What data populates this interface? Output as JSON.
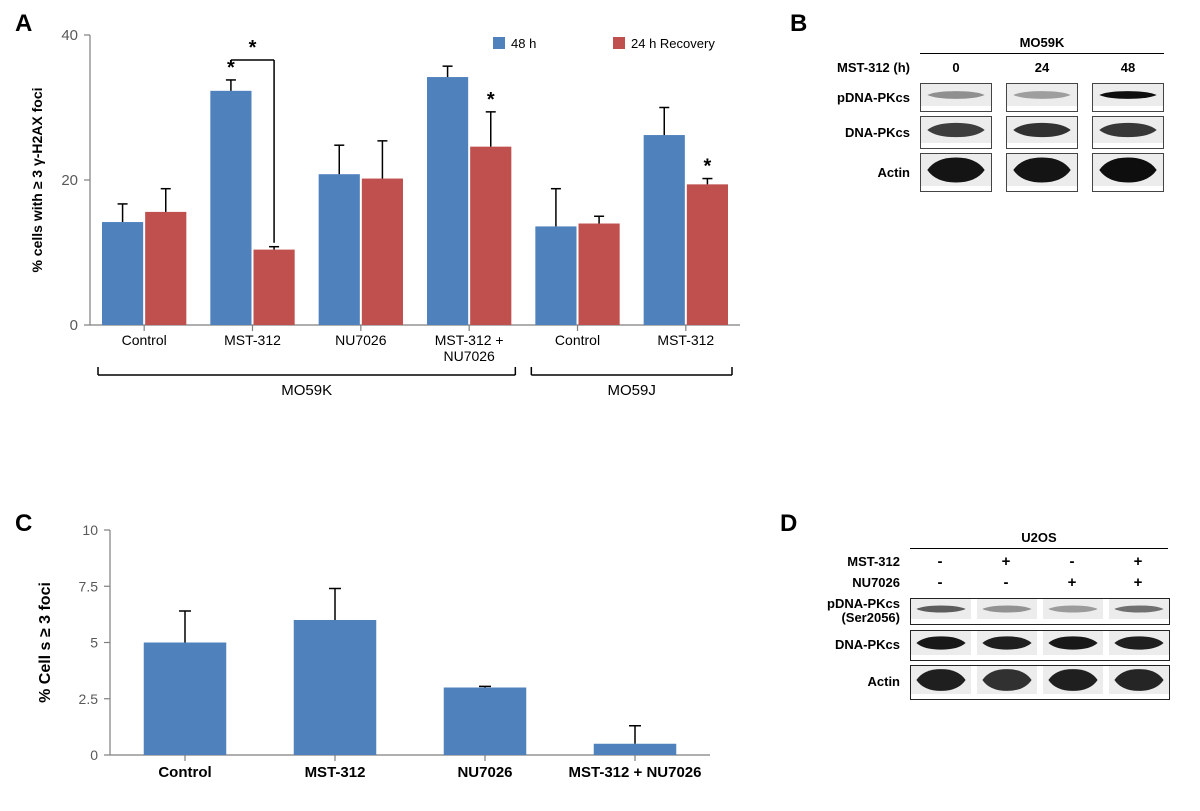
{
  "panelA": {
    "label": "A",
    "type": "bar",
    "y_axis_label": "% cells with ≥ 3 γ-H2AX foci",
    "y_axis_label_fontsize": 14,
    "ylim": [
      0,
      40
    ],
    "ytick_step": 20,
    "yticks": [
      0,
      20,
      40
    ],
    "legend": {
      "items": [
        {
          "label": "48 h",
          "color": "#4f81bd"
        },
        {
          "label": "24 h Recovery",
          "color": "#c0504d"
        }
      ],
      "fontsize": 13
    },
    "bar_width": 0.38,
    "colors": {
      "blue": "#4f81bd",
      "red": "#c0504d"
    },
    "border_color": "#000000",
    "error_bar_color": "#000000",
    "groups": [
      {
        "label": "Control",
        "section": "MO59K",
        "blue": 14.2,
        "blue_err": 2.5,
        "red": 15.6,
        "red_err": 3.2
      },
      {
        "label": "MST-312",
        "section": "MO59K",
        "blue": 32.3,
        "blue_err": 1.5,
        "red": 10.4,
        "red_err": 0.4,
        "sig_blue": "*",
        "sig_bracket": "*"
      },
      {
        "label": "NU7026",
        "section": "MO59K",
        "blue": 20.8,
        "blue_err": 4.0,
        "red": 20.2,
        "red_err": 5.2
      },
      {
        "label": "MST-312 +\nNU7026",
        "section": "MO59K",
        "blue": 34.2,
        "blue_err": 1.5,
        "red": 24.6,
        "red_err": 4.8,
        "sig_red": "*"
      },
      {
        "label": "Control",
        "section": "MO59J",
        "blue": 13.6,
        "blue_err": 5.2,
        "red": 14.0,
        "red_err": 1.0
      },
      {
        "label": "MST-312",
        "section": "MO59J",
        "blue": 26.2,
        "blue_err": 3.8,
        "red": 19.4,
        "red_err": 0.8,
        "sig_red": "*"
      }
    ],
    "sections": [
      {
        "label": "MO59K",
        "start": 0,
        "end": 4
      },
      {
        "label": "MO59J",
        "start": 4,
        "end": 6
      }
    ],
    "x_label_fontsize": 14,
    "section_label_fontsize": 15,
    "tick_fontsize": 15
  },
  "panelB": {
    "label": "B",
    "cell_line": "MO59K",
    "treatment_label": "MST-312 (h)",
    "timepoints": [
      "0",
      "24",
      "48"
    ],
    "rows": [
      {
        "label": "pDNA-PKcs",
        "intensity": [
          0.35,
          0.25,
          0.95
        ],
        "shape": "thin"
      },
      {
        "label": "DNA-PKcs",
        "intensity": [
          0.75,
          0.8,
          0.78
        ],
        "shape": "medium"
      },
      {
        "label": "Actin",
        "intensity": [
          0.92,
          0.92,
          0.95
        ],
        "shape": "thick"
      }
    ],
    "label_fontsize": 13,
    "lane_width": 72,
    "lane_gap": 14
  },
  "panelC": {
    "label": "C",
    "type": "bar",
    "y_axis_label": "% Cell s ≥ 3 foci",
    "y_axis_label_fontsize": 16,
    "ylim": [
      0,
      10
    ],
    "ytick_step": 2.5,
    "yticks": [
      0,
      2.5,
      5,
      7.5,
      10
    ],
    "bar_color": "#4f81bd",
    "border_color": "#000000",
    "error_bar_color": "#000000",
    "bar_width": 0.55,
    "x_label_fontsize": 15,
    "tick_fontsize": 14,
    "bars": [
      {
        "label": "Control",
        "value": 5.0,
        "err": 1.4
      },
      {
        "label": "MST-312",
        "value": 6.0,
        "err": 1.4
      },
      {
        "label": "NU7026",
        "value": 3.0,
        "err": 0.05
      },
      {
        "label": "MST-312 + NU7026",
        "value": 0.5,
        "err": 0.8
      }
    ]
  },
  "panelD": {
    "label": "D",
    "cell_line": "U2OS",
    "treatments": [
      {
        "label": "MST-312",
        "values": [
          "-",
          "+",
          "-",
          "+"
        ]
      },
      {
        "label": "NU7026",
        "values": [
          "-",
          "-",
          "+",
          "+"
        ]
      }
    ],
    "rows": [
      {
        "label": "pDNA-PKcs\n(Ser2056)",
        "intensity": [
          0.6,
          0.32,
          0.28,
          0.5
        ],
        "shape": "thin"
      },
      {
        "label": "DNA-PKcs",
        "intensity": [
          0.9,
          0.88,
          0.9,
          0.88
        ],
        "shape": "medium"
      },
      {
        "label": "Actin",
        "intensity": [
          0.88,
          0.8,
          0.88,
          0.85
        ],
        "shape": "thick"
      }
    ],
    "label_fontsize": 13,
    "lane_width": 60,
    "lane_gap": 6
  }
}
